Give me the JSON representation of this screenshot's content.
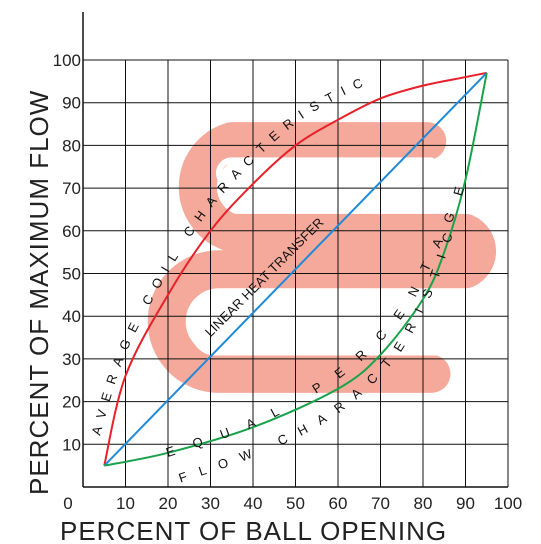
{
  "chart_data": {
    "type": "line",
    "xlabel": "PERCENT OF BALL OPENING",
    "ylabel": "PERCENT OF MAXIMUM FLOW",
    "xlim": [
      0,
      100
    ],
    "ylim": [
      0,
      100
    ],
    "x_ticks": [
      "0",
      "10",
      "20",
      "30",
      "40",
      "50",
      "60",
      "70",
      "80",
      "90",
      "100"
    ],
    "y_ticks": [
      "10",
      "20",
      "30",
      "40",
      "50",
      "60",
      "70",
      "80",
      "90",
      "100"
    ],
    "grid": true,
    "series": [
      {
        "name": "AVERAGE COIL CHARACTERISTIC",
        "color": "#e8202a",
        "points": [
          [
            5,
            5
          ],
          [
            10,
            26
          ],
          [
            20,
            45
          ],
          [
            30,
            60
          ],
          [
            40,
            71
          ],
          [
            50,
            80
          ],
          [
            60,
            86
          ],
          [
            70,
            91
          ],
          [
            80,
            94
          ],
          [
            90,
            96
          ],
          [
            95,
            97
          ]
        ]
      },
      {
        "name": "LINEAR HEAT TRANSFER",
        "color": "#1f8ad8",
        "points": [
          [
            5,
            5
          ],
          [
            95,
            97
          ]
        ]
      },
      {
        "name": "EQUAL PERCENTAGE FLOW CHARACTERISTIC",
        "color": "#18a34a",
        "points": [
          [
            5,
            5
          ],
          [
            20,
            8
          ],
          [
            40,
            14
          ],
          [
            60,
            23
          ],
          [
            70,
            31
          ],
          [
            80,
            44
          ],
          [
            85,
            55
          ],
          [
            90,
            72
          ],
          [
            95,
            97
          ]
        ]
      }
    ],
    "background_graphic_color": "#f4a99a",
    "curve_labels": {
      "average_coil": "AVERAGE COIL CHARACTERISTIC",
      "linear": "LINEAR HEAT TRANSFER",
      "equal_line1": "EQUAL PERCENTAGE",
      "equal_line2": "FLOW CHARACTERISTIC"
    }
  }
}
